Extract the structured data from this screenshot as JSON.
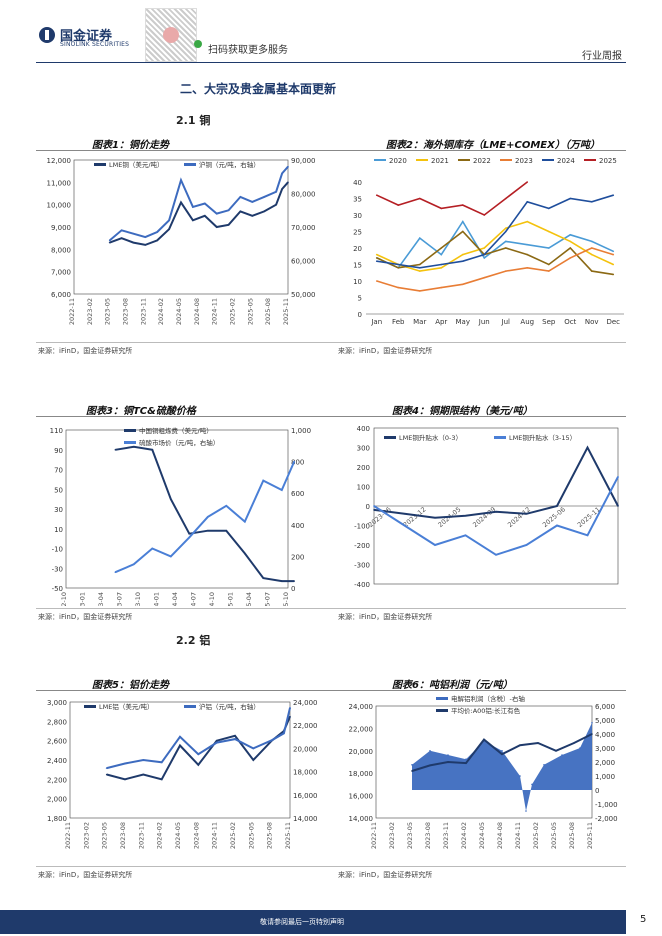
{
  "header": {
    "company_cn": "国金证券",
    "company_en": "SINOLINK SECURITIES",
    "scan_text": "扫码获取更多服务",
    "report_type": "行业周报"
  },
  "section": {
    "title": "二、大宗及贵金属基本面更新",
    "sub1": "2.1 铜",
    "sub2": "2.2 铝"
  },
  "source_text": "来源：iFinD，国金证券研究所",
  "footer": {
    "disclaimer": "敬请参阅最后一页特别声明",
    "page": "5"
  },
  "chart_data": [
    {
      "id": "fig1",
      "type": "line",
      "title": "图表1：铜价走势",
      "x_ticks": [
        "2022-11",
        "2023-02",
        "2023-05",
        "2023-08",
        "2023-11",
        "2024-02",
        "2024-05",
        "2024-08",
        "2024-11",
        "2025-02",
        "2025-05",
        "2025-08",
        "2025-11"
      ],
      "y_left_ticks": [
        "12,000",
        "11,000",
        "10,000",
        "9,000",
        "8,000",
        "7,000",
        "6,000"
      ],
      "y_right_ticks": [
        "90,000",
        "80,000",
        "70,000",
        "60,000",
        "50,000"
      ],
      "ylim_left": [
        6000,
        12000
      ],
      "ylim_right": [
        50000,
        90000
      ],
      "series": [
        {
          "name": "LME铜（美元/吨）",
          "axis": "left",
          "color": "#1f3a6b",
          "x": [
            "2023-05",
            "2023-07",
            "2023-09",
            "2023-11",
            "2024-01",
            "2024-03",
            "2024-05",
            "2024-07",
            "2024-09",
            "2024-11",
            "2025-01",
            "2025-03",
            "2025-05",
            "2025-07",
            "2025-09",
            "2025-10",
            "2025-11"
          ],
          "values": [
            8300,
            8500,
            8300,
            8200,
            8400,
            8900,
            10100,
            9300,
            9500,
            9000,
            9100,
            9700,
            9500,
            9700,
            10000,
            10700,
            11000
          ]
        },
        {
          "name": "沪铜（元/吨，右轴）",
          "axis": "right",
          "color": "#3d6bbf",
          "x": [
            "2023-05",
            "2023-07",
            "2023-09",
            "2023-11",
            "2024-01",
            "2024-03",
            "2024-05",
            "2024-07",
            "2024-09",
            "2024-11",
            "2025-01",
            "2025-03",
            "2025-05",
            "2025-07",
            "2025-09",
            "2025-10",
            "2025-11"
          ],
          "values": [
            66000,
            69000,
            68000,
            67000,
            68500,
            72000,
            84000,
            76000,
            77000,
            74000,
            75000,
            79000,
            77500,
            79000,
            80500,
            86000,
            88000
          ]
        }
      ]
    },
    {
      "id": "fig2",
      "type": "line",
      "title": "图表2：海外铜库存（LME+COMEX）（万吨）",
      "x_ticks": [
        "Jan",
        "Feb",
        "Mar",
        "Apr",
        "May",
        "Jun",
        "Jul",
        "Aug",
        "Sep",
        "Oct",
        "Nov",
        "Dec"
      ],
      "y_ticks": [
        "40",
        "35",
        "30",
        "25",
        "20",
        "15",
        "10",
        "5",
        "0"
      ],
      "ylim": [
        0,
        40
      ],
      "series": [
        {
          "name": "2020",
          "color": "#4a9bd6",
          "values": [
            17,
            14,
            23,
            18,
            28,
            17,
            22,
            21,
            20,
            24,
            22,
            19
          ]
        },
        {
          "name": "2021",
          "color": "#f4c20d",
          "values": [
            18,
            15,
            13,
            14,
            18,
            20,
            26,
            28,
            25,
            22,
            18,
            15
          ]
        },
        {
          "name": "2022",
          "color": "#8b6914",
          "values": [
            17,
            14,
            15,
            20,
            25,
            18,
            20,
            18,
            15,
            20,
            13,
            12
          ]
        },
        {
          "name": "2023",
          "color": "#e87d35",
          "values": [
            10,
            8,
            7,
            8,
            9,
            11,
            13,
            14,
            13,
            17,
            20,
            18
          ]
        },
        {
          "name": "2024",
          "color": "#1f4e9c",
          "values": [
            16,
            15,
            14,
            15,
            16,
            18,
            25,
            34,
            32,
            35,
            34,
            36
          ]
        },
        {
          "name": "2025",
          "color": "#b51f24",
          "values": [
            36,
            33,
            35,
            32,
            33,
            30,
            35,
            40
          ]
        }
      ]
    },
    {
      "id": "fig3",
      "type": "line",
      "title": "图表3：铜TC&硫酸价格",
      "x_ticks": [
        "2022-10",
        "2023-01",
        "2023-04",
        "2023-07",
        "2023-10",
        "2024-01",
        "2024-04",
        "2024-07",
        "2024-10",
        "2025-01",
        "2025-04",
        "2025-07",
        "2025-10"
      ],
      "y_left_ticks": [
        "110",
        "90",
        "70",
        "50",
        "30",
        "10",
        "-10",
        "-30",
        "-50"
      ],
      "y_right_ticks": [
        "1,000",
        "800",
        "600",
        "400",
        "200",
        "0"
      ],
      "ylim_left": [
        -50,
        110
      ],
      "ylim_right": [
        0,
        1000
      ],
      "series": [
        {
          "name": "中国铜粗炼费（美元/吨）",
          "axis": "left",
          "color": "#1f3a6b",
          "x": [
            "2023-06",
            "2023-09",
            "2023-12",
            "2024-03",
            "2024-06",
            "2024-09",
            "2024-12",
            "2025-03",
            "2025-06",
            "2025-09",
            "2025-11"
          ],
          "values": [
            90,
            93,
            90,
            40,
            5,
            8,
            8,
            -15,
            -40,
            -43,
            -43
          ]
        },
        {
          "name": "硫酸市场价（元/吨，右轴）",
          "axis": "right",
          "color": "#4a7fd6",
          "x": [
            "2023-06",
            "2023-09",
            "2023-12",
            "2024-03",
            "2024-06",
            "2024-09",
            "2024-12",
            "2025-03",
            "2025-06",
            "2025-09",
            "2025-11"
          ],
          "values": [
            100,
            150,
            250,
            200,
            320,
            450,
            520,
            420,
            680,
            620,
            800
          ]
        }
      ]
    },
    {
      "id": "fig4",
      "type": "line",
      "title": "图表4：铜期限结构（美元/吨）",
      "x_ticks": [
        "2023-06",
        "2023-12",
        "2024-05",
        "2024-09",
        "2024-12",
        "2025-06",
        "2025-11"
      ],
      "y_ticks": [
        "400",
        "300",
        "200",
        "100",
        "0",
        "-100",
        "-200",
        "-300",
        "-400"
      ],
      "ylim": [
        -400,
        400
      ],
      "series": [
        {
          "name": "LME铜升贴水（0-3）",
          "color": "#1f3a6b",
          "values": [
            -20,
            -40,
            -60,
            -50,
            -30,
            -40,
            0,
            300,
            0
          ]
        },
        {
          "name": "LME铜升贴水（3-15）",
          "color": "#4a7fd6",
          "values": [
            0,
            -100,
            -200,
            -150,
            -250,
            -200,
            -100,
            -150,
            150
          ]
        }
      ]
    },
    {
      "id": "fig5",
      "type": "line",
      "title": "图表5：铝价走势",
      "x_ticks": [
        "2022-11",
        "2023-02",
        "2023-05",
        "2023-08",
        "2023-11",
        "2024-02",
        "2024-05",
        "2024-08",
        "2024-11",
        "2025-02",
        "2025-05",
        "2025-08",
        "2025-11"
      ],
      "y_left_ticks": [
        "3,000",
        "2,800",
        "2,600",
        "2,400",
        "2,200",
        "2,000",
        "1,800"
      ],
      "y_right_ticks": [
        "24,000",
        "22,000",
        "20,000",
        "18,000",
        "16,000",
        "14,000"
      ],
      "ylim_left": [
        1800,
        3000
      ],
      "ylim_right": [
        14000,
        24000
      ],
      "series": [
        {
          "name": "LME铝（美元/吨）",
          "axis": "left",
          "color": "#1f3a6b",
          "x": [
            "2023-05",
            "2023-08",
            "2023-11",
            "2024-02",
            "2024-05",
            "2024-08",
            "2024-11",
            "2025-02",
            "2025-05",
            "2025-08",
            "2025-10",
            "2025-11"
          ],
          "values": [
            2250,
            2200,
            2250,
            2200,
            2550,
            2350,
            2600,
            2650,
            2400,
            2600,
            2700,
            2850
          ]
        },
        {
          "name": "沪铝（元/吨，右轴）",
          "axis": "right",
          "color": "#3d6bbf",
          "x": [
            "2023-05",
            "2023-08",
            "2023-11",
            "2024-02",
            "2024-05",
            "2024-08",
            "2024-11",
            "2025-02",
            "2025-05",
            "2025-08",
            "2025-10",
            "2025-11"
          ],
          "values": [
            18300,
            18700,
            19000,
            18800,
            21000,
            19500,
            20500,
            20800,
            20000,
            20700,
            21300,
            23500
          ]
        }
      ]
    },
    {
      "id": "fig6",
      "type": "area",
      "title": "图表6：吨铝利润（元/吨）",
      "x_ticks": [
        "2022-11",
        "2023-02",
        "2023-05",
        "2023-08",
        "2023-11",
        "2024-02",
        "2024-05",
        "2024-08",
        "2024-11",
        "2025-02",
        "2025-05",
        "2025-08",
        "2025-11"
      ],
      "y_left_ticks": [
        "24,000",
        "22,000",
        "20,000",
        "18,000",
        "16,000",
        "14,000"
      ],
      "y_right_ticks": [
        "6,000",
        "5,000",
        "4,000",
        "3,000",
        "2,000",
        "1,000",
        "0",
        "-1,000",
        "-2,000"
      ],
      "ylim_left": [
        14000,
        24000
      ],
      "ylim_right": [
        -2000,
        6000
      ],
      "series": [
        {
          "name": "电解铝利润（含税）-右轴",
          "axis": "right",
          "color": "#3d6bbf",
          "x": [
            "2023-05",
            "2023-08",
            "2023-11",
            "2024-02",
            "2024-05",
            "2024-08",
            "2024-11",
            "2024-12",
            "2025-01",
            "2025-03",
            "2025-06",
            "2025-09",
            "2025-11"
          ],
          "values": [
            1800,
            2800,
            2500,
            2200,
            3500,
            2800,
            1000,
            -1500,
            400,
            1800,
            2500,
            3000,
            4800
          ]
        },
        {
          "name": "平均价:A00铝:长江有色",
          "axis": "left",
          "color": "#1f3a6b",
          "x": [
            "2023-05",
            "2023-08",
            "2023-11",
            "2024-02",
            "2024-05",
            "2024-08",
            "2024-11",
            "2025-02",
            "2025-05",
            "2025-08",
            "2025-11"
          ],
          "values": [
            18200,
            18700,
            19000,
            18900,
            21000,
            19700,
            20500,
            20700,
            20000,
            20700,
            21500
          ]
        }
      ]
    }
  ]
}
